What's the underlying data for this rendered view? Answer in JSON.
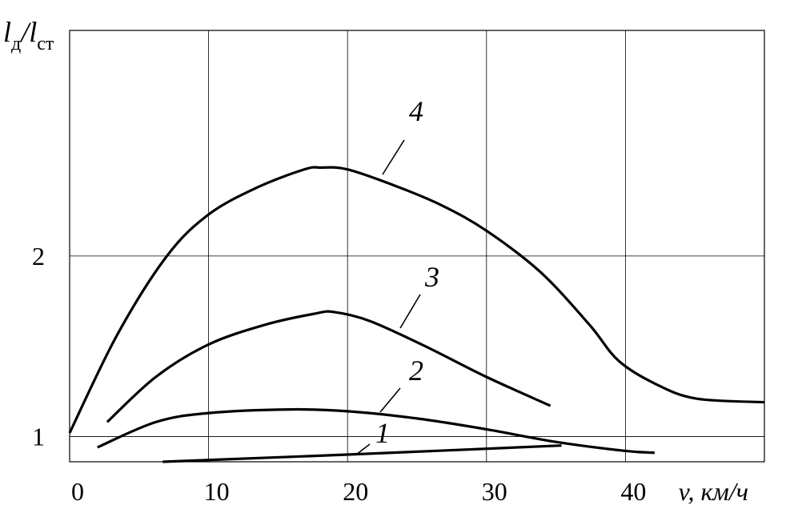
{
  "chart_data": {
    "type": "line",
    "ylabel": [
      "l",
      "д",
      "/l",
      "ст"
    ],
    "xlabel": "v, км/ч",
    "xlim": [
      0,
      50
    ],
    "xticks": [
      0,
      10,
      20,
      30,
      40
    ],
    "ylim": [
      0.86,
      3.25
    ],
    "yticks": [
      1,
      2
    ],
    "grid": true,
    "series": [
      {
        "name": "1",
        "color": "#000000",
        "x": [
          6.7,
          20,
          35.4
        ],
        "values": [
          0.86,
          0.9,
          0.95
        ]
      },
      {
        "name": "2",
        "color": "#000000",
        "x": [
          2.0,
          6.2,
          10,
          15.8,
          20,
          25,
          30,
          35,
          40,
          42.1
        ],
        "values": [
          0.94,
          1.08,
          1.13,
          1.15,
          1.14,
          1.1,
          1.04,
          0.97,
          0.92,
          0.91
        ]
      },
      {
        "name": "3",
        "color": "#000000",
        "x": [
          2.7,
          6.2,
          10,
          14.1,
          17.6,
          19,
          21.6,
          25.6,
          30,
          34.6
        ],
        "values": [
          1.08,
          1.33,
          1.51,
          1.62,
          1.68,
          1.69,
          1.64,
          1.5,
          1.33,
          1.17
        ]
      },
      {
        "name": "4",
        "color": "#000000",
        "x": [
          0,
          3.4,
          7,
          10,
          13.5,
          16.9,
          18.1,
          20,
          23.4,
          26.8,
          30,
          33.9,
          37.4,
          39.5,
          42.2,
          45.1,
          50
        ],
        "values": [
          1.02,
          1.56,
          2.0,
          2.23,
          2.38,
          2.48,
          2.49,
          2.48,
          2.39,
          2.28,
          2.14,
          1.91,
          1.62,
          1.42,
          1.29,
          1.21,
          1.19
        ]
      }
    ]
  }
}
